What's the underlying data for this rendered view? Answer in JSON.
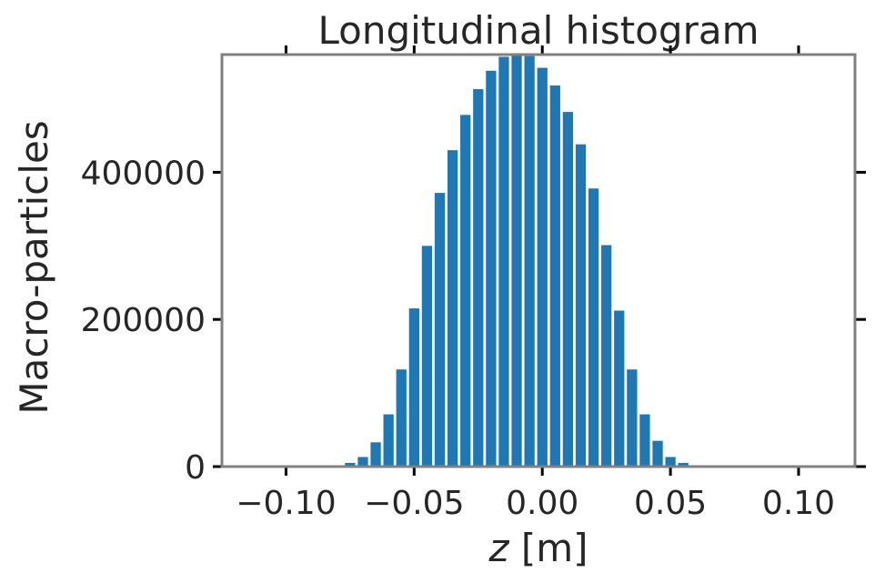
{
  "chart_data": {
    "type": "bar",
    "title": "Longitudinal histogram",
    "xlabel_var": "z",
    "xlabel_unit": " [m]",
    "ylabel": "Macro-particles",
    "xlim": [
      -0.125,
      0.122
    ],
    "ylim": [
      0,
      560000
    ],
    "x_ticks": [
      {
        "value": -0.1,
        "label": "−0.10"
      },
      {
        "value": -0.05,
        "label": "−0.05"
      },
      {
        "value": 0.0,
        "label": "0.00"
      },
      {
        "value": 0.05,
        "label": "0.05"
      },
      {
        "value": 0.1,
        "label": "0.10"
      }
    ],
    "y_ticks": [
      {
        "value": 0,
        "label": "0"
      },
      {
        "value": 200000,
        "label": "200000"
      },
      {
        "value": 400000,
        "label": "400000"
      }
    ],
    "bin_width": 0.005,
    "x": [
      -0.085,
      -0.08,
      -0.075,
      -0.07,
      -0.065,
      -0.06,
      -0.055,
      -0.05,
      -0.045,
      -0.04,
      -0.035,
      -0.03,
      -0.025,
      -0.02,
      -0.015,
      -0.01,
      -0.005,
      0.0,
      0.005,
      0.01,
      0.015,
      0.02,
      0.025,
      0.03,
      0.035,
      0.04,
      0.045,
      0.05,
      0.055,
      0.06,
      0.065,
      0.07,
      0.075,
      0.08
    ],
    "values": [
      300,
      1000,
      5000,
      13000,
      33000,
      71000,
      132000,
      215000,
      300000,
      372000,
      430000,
      478000,
      513000,
      538000,
      557000,
      561000,
      558000,
      542000,
      518000,
      482000,
      438000,
      378000,
      301000,
      212000,
      132000,
      71000,
      35000,
      13000,
      5000,
      1000,
      300,
      0,
      0,
      0
    ],
    "bar_color": "#1f77b4",
    "frame_color": "#808080",
    "grid": false
  }
}
